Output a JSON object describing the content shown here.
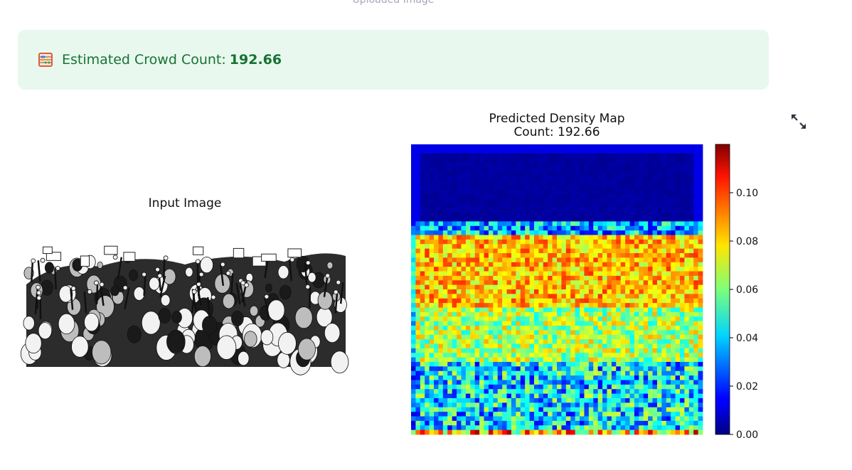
{
  "page": {
    "top_caption": "Uploaded Image"
  },
  "alert": {
    "icon": "abacus-icon",
    "label": "Estimated Crowd Count:",
    "value": "192.66",
    "bg_color": "#e8f8ee",
    "text_color": "#177233"
  },
  "toolbar": {
    "expand_icon": "fullscreen-expand-icon"
  },
  "figure": {
    "left_panel": {
      "title": "Input Image",
      "image": "crowd-illustration"
    },
    "right_panel": {
      "title_line1": "Predicted Density Map",
      "title_line2": "Count: 192.66"
    }
  },
  "chart_data": {
    "type": "heatmap",
    "title": "Predicted Density Map\nCount: 192.66",
    "colormap": "jet",
    "colorbar": {
      "range": [
        0.0,
        0.12
      ],
      "ticks": [
        "0.00",
        "0.02",
        "0.04",
        "0.06",
        "0.08",
        "0.10"
      ],
      "tick_values": [
        0.0,
        0.02,
        0.04,
        0.06,
        0.08,
        0.1
      ]
    },
    "count": 192.66,
    "grid_size": 64,
    "regions": [
      {
        "rows": "top ~28%",
        "approx_value": 0.003
      },
      {
        "rows": "upper band ~28-55%",
        "approx_value": 0.085
      },
      {
        "rows": "middle ~55-75%",
        "approx_value": 0.07
      },
      {
        "rows": "bottom ~75-100%",
        "approx_value": 0.045
      }
    ]
  }
}
